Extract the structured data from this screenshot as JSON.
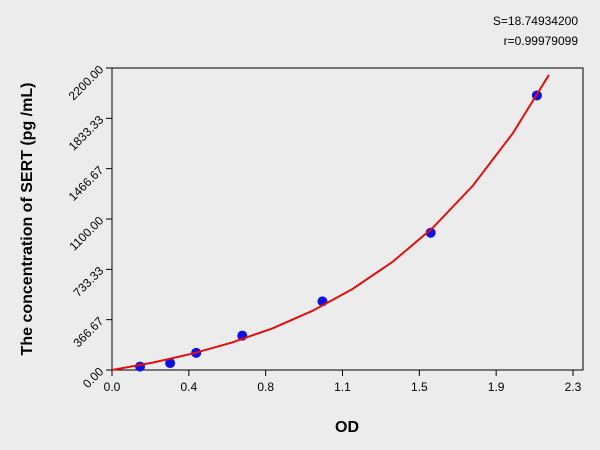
{
  "chart_data": {
    "type": "scatter",
    "annotations": [
      "S=18.74934200",
      "r=0.99979099"
    ],
    "x_label": "OD",
    "y_label": "The concentration of  SERT (pg /mL)",
    "x": [
      0.14,
      0.29,
      0.42,
      0.65,
      1.05,
      1.59,
      2.12
    ],
    "values": [
      25,
      50,
      125,
      250,
      500,
      1000,
      2000
    ],
    "color": "#1010e0",
    "fit_curve": {
      "color": "#e01010",
      "x": [
        0.0,
        0.2,
        0.4,
        0.6,
        0.8,
        1.0,
        1.2,
        1.4,
        1.6,
        1.8,
        2.0,
        2.18
      ],
      "y": [
        0,
        53,
        119,
        201,
        303,
        431,
        590,
        788,
        1035,
        1342,
        1725,
        2150
      ]
    },
    "xlim": [
      0,
      2.35
    ],
    "ylim": [
      0,
      2200
    ],
    "xticks": [
      {
        "value": 0,
        "label": "0.0"
      },
      {
        "value": 0.3833,
        "label": "0.4"
      },
      {
        "value": 0.7667,
        "label": "0.8"
      },
      {
        "value": 1.15,
        "label": "1.1"
      },
      {
        "value": 1.5333,
        "label": "1.5"
      },
      {
        "value": 1.9167,
        "label": "1.9"
      },
      2.3
    ],
    "yticks": [
      {
        "value": 0,
        "label": "0.00"
      },
      366.67,
      733.33,
      {
        "value": 1100,
        "label": "1100.00"
      },
      1466.67,
      1833.33,
      {
        "value": 2200,
        "label": "2200.00"
      }
    ]
  }
}
